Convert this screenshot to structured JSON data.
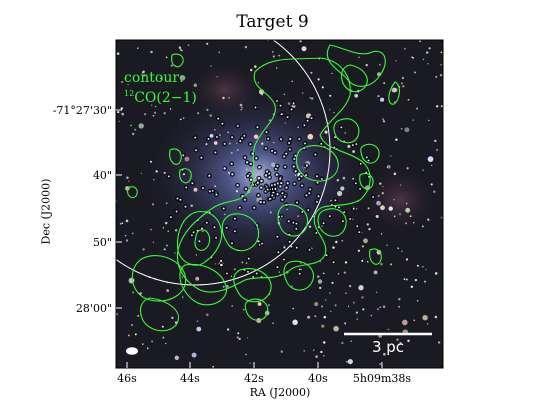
{
  "figure": {
    "title": "Target 9",
    "xlabel": "RA (J2000)",
    "ylabel": "Dec (J2000)",
    "x_ticks": [
      "46s",
      "44s",
      "42s",
      "40s",
      "5h09m38s"
    ],
    "y_ticks": [
      "-71°27'30\"",
      "40\"",
      "50\"",
      "28'00\""
    ],
    "contour_label_line1": "contour:",
    "contour_label_iso": "12",
    "contour_label_line2": "CO(2−1)",
    "scale_bar_label": "3 pc",
    "colors": {
      "contour": "#33ff33",
      "circle": "#ffffff",
      "scale_bar": "#ffffff",
      "beam": "#ffffff",
      "background": "#1a1a22"
    }
  }
}
